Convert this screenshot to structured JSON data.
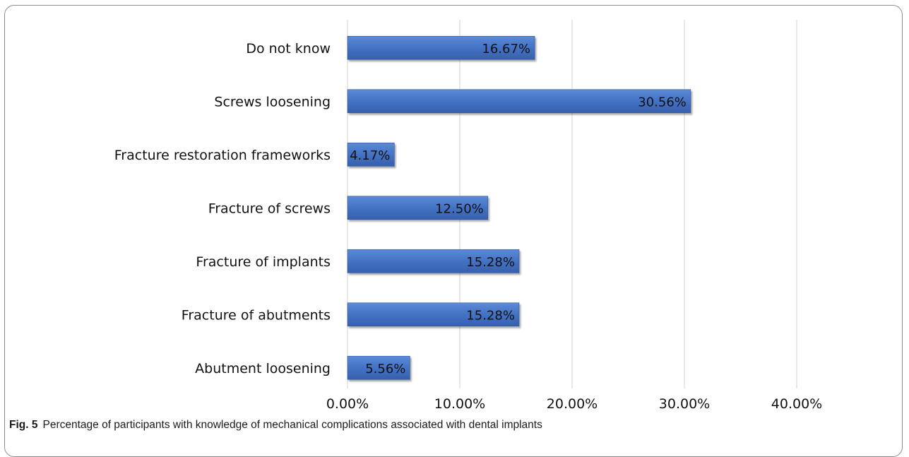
{
  "chart_data": {
    "type": "bar",
    "orientation": "horizontal",
    "categories": [
      "Do not know",
      "Screws loosening",
      "Fracture restoration frameworks",
      "Fracture of screws",
      "Fracture of implants",
      "Fracture of abutments",
      "Abutment loosening"
    ],
    "values": [
      16.67,
      30.56,
      4.17,
      12.5,
      15.28,
      15.28,
      5.56
    ],
    "value_labels": [
      "16.67%",
      "30.56%",
      "4.17%",
      "12.50%",
      "15.28%",
      "15.28%",
      "5.56%"
    ],
    "x_ticks": [
      "0.00%",
      "10.00%",
      "20.00%",
      "30.00%",
      "40.00%"
    ],
    "xlim": [
      0,
      40
    ],
    "grid": "vertical",
    "bar_color": "#4472c4",
    "title": "",
    "xlabel": "",
    "ylabel": ""
  },
  "caption": {
    "label": "Fig. 5",
    "text": "Percentage of participants with knowledge of mechanical complications associated with dental implants"
  }
}
